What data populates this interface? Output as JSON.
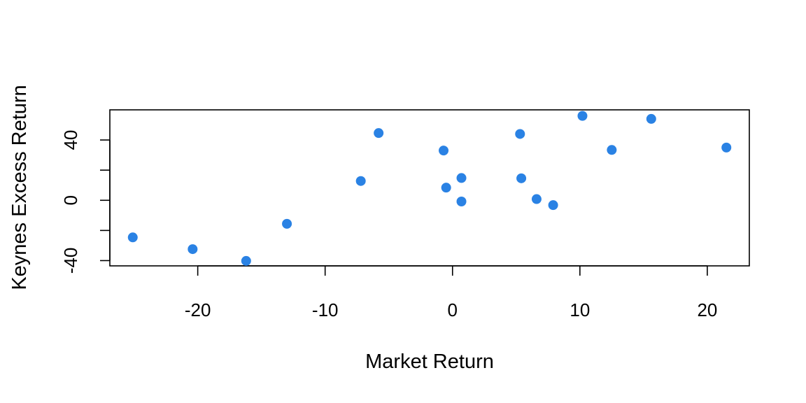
{
  "chart_data": {
    "type": "scatter",
    "xlabel": "Market Return",
    "ylabel": "Keynes Excess Return",
    "xlim": [
      -26.9,
      23.3
    ],
    "ylim": [
      -43.5,
      60.0
    ],
    "x_ticks": [
      -20,
      -10,
      0,
      10,
      20
    ],
    "x_tick_labels": [
      "-20",
      "-10",
      "0",
      "10",
      "20"
    ],
    "y_ticks": [
      -40,
      -20,
      0,
      20,
      40
    ],
    "y_tick_labels": [
      "-40",
      "",
      "0",
      "",
      "40"
    ],
    "point_color": "#2A82E4",
    "grid": false,
    "legend": "none",
    "points": [
      {
        "x": -25.1,
        "y": -24.6
      },
      {
        "x": -20.4,
        "y": -32.4
      },
      {
        "x": -16.2,
        "y": -40.2
      },
      {
        "x": -13.0,
        "y": -15.6
      },
      {
        "x": -7.2,
        "y": 12.8
      },
      {
        "x": -5.8,
        "y": 44.6
      },
      {
        "x": -0.7,
        "y": 33.0
      },
      {
        "x": -0.5,
        "y": 8.4
      },
      {
        "x": 0.7,
        "y": 14.8
      },
      {
        "x": 0.7,
        "y": -0.8
      },
      {
        "x": 5.3,
        "y": 44.0
      },
      {
        "x": 5.4,
        "y": 14.6
      },
      {
        "x": 6.6,
        "y": 0.8
      },
      {
        "x": 7.9,
        "y": -3.2
      },
      {
        "x": 10.2,
        "y": 56.0
      },
      {
        "x": 12.5,
        "y": 33.4
      },
      {
        "x": 15.6,
        "y": 54.0
      },
      {
        "x": 21.5,
        "y": 35.0
      }
    ]
  }
}
